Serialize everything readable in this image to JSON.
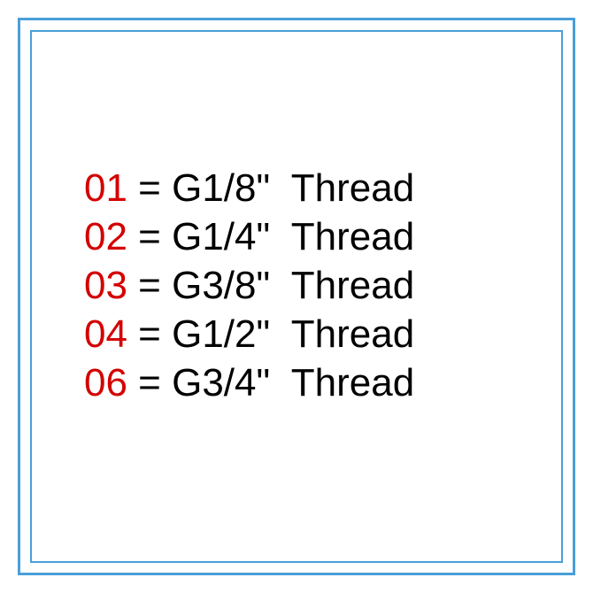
{
  "border_outer_color": "#4a9fd8",
  "border_inner_color": "#4a9fd8",
  "background_color": "#ffffff",
  "code_color": "#d40000",
  "text_color": "#000000",
  "font_size": 44,
  "rows": [
    {
      "code": "01",
      "rest": " = G1/8\"  Thread"
    },
    {
      "code": "02",
      "rest": " = G1/4\"  Thread"
    },
    {
      "code": "03",
      "rest": " = G3/8\"  Thread"
    },
    {
      "code": "04",
      "rest": " = G1/2\"  Thread"
    },
    {
      "code": "06",
      "rest": " = G3/4\"  Thread"
    }
  ]
}
